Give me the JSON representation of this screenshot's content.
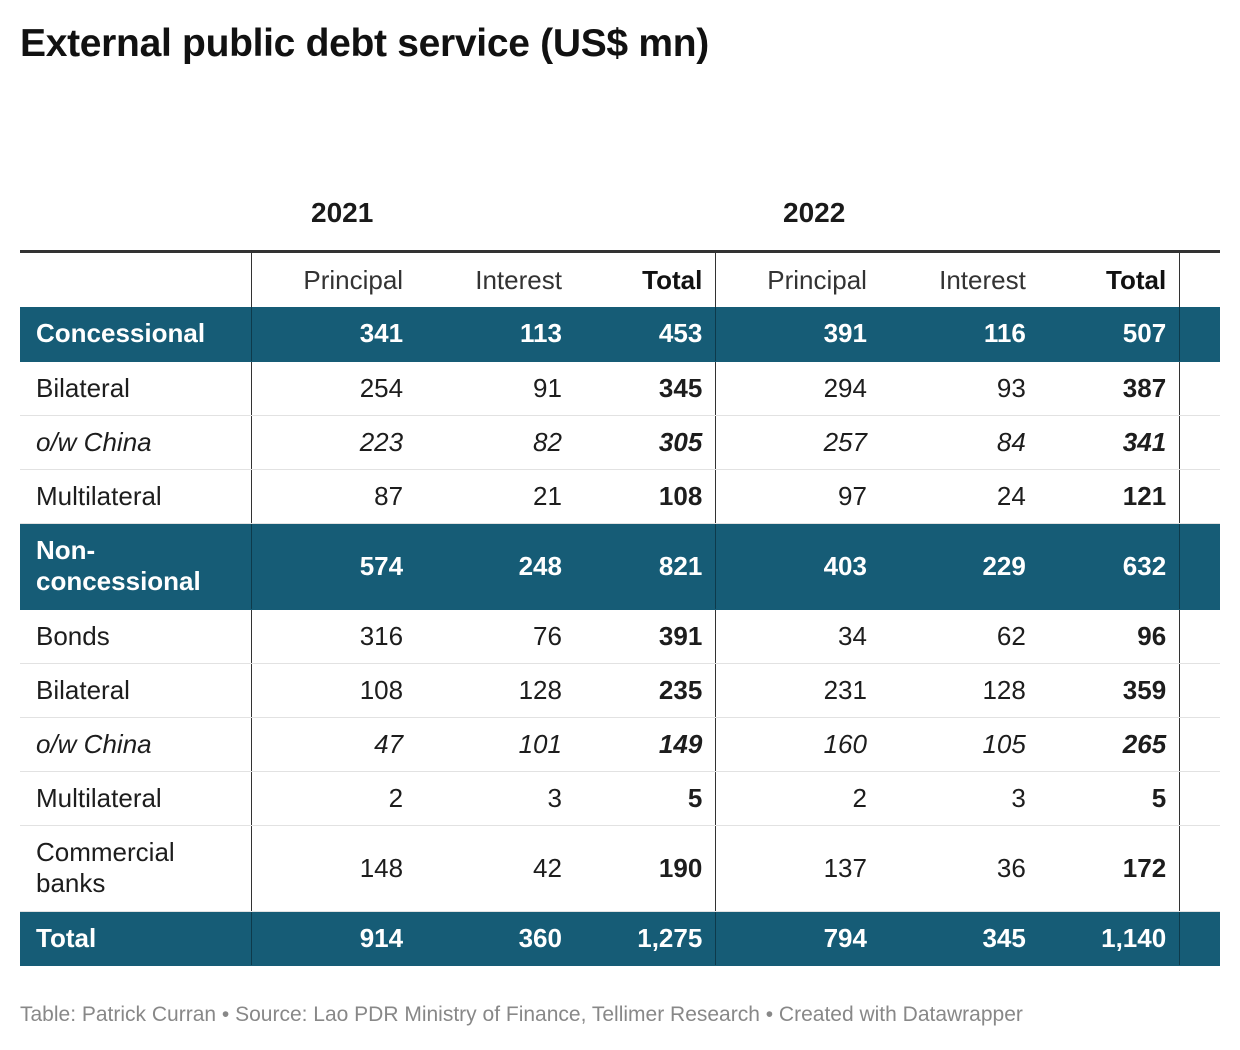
{
  "chart_data": {
    "type": "table",
    "title": "External public debt service (US$ mn)",
    "years": [
      "2021",
      "2022"
    ],
    "columns": [
      "Principal",
      "Interest",
      "Total",
      "Principal",
      "Interest",
      "Total"
    ],
    "rows": [
      {
        "label": "Concessional",
        "style": "highlight",
        "values": [
          "341",
          "113",
          "453",
          "391",
          "116",
          "507"
        ]
      },
      {
        "label": "Bilateral",
        "style": "normal",
        "values": [
          "254",
          "91",
          "345",
          "294",
          "93",
          "387"
        ]
      },
      {
        "label": "o/w China",
        "style": "italic",
        "values": [
          "223",
          "82",
          "305",
          "257",
          "84",
          "341"
        ]
      },
      {
        "label": "Multilateral",
        "style": "normal",
        "values": [
          "87",
          "21",
          "108",
          "97",
          "24",
          "121"
        ]
      },
      {
        "label": "Non-concessional",
        "style": "highlight",
        "values": [
          "574",
          "248",
          "821",
          "403",
          "229",
          "632"
        ]
      },
      {
        "label": "Bonds",
        "style": "normal",
        "values": [
          "316",
          "76",
          "391",
          "34",
          "62",
          "96"
        ]
      },
      {
        "label": "Bilateral",
        "style": "normal",
        "values": [
          "108",
          "128",
          "235",
          "231",
          "128",
          "359"
        ]
      },
      {
        "label": "o/w China",
        "style": "italic",
        "values": [
          "47",
          "101",
          "149",
          "160",
          "105",
          "265"
        ]
      },
      {
        "label": "Multilateral",
        "style": "normal",
        "values": [
          "2",
          "3",
          "5",
          "2",
          "3",
          "5"
        ]
      },
      {
        "label": "Commercial banks",
        "style": "normal",
        "values": [
          "148",
          "42",
          "190",
          "137",
          "36",
          "172"
        ]
      },
      {
        "label": "Total",
        "style": "highlight",
        "values": [
          "914",
          "360",
          "1,275",
          "794",
          "345",
          "1,140"
        ]
      }
    ],
    "colors": {
      "highlight_row": "#165c76",
      "highlight_text": "#ffffff"
    }
  },
  "footer": "Table: Patrick Curran • Source: Lao PDR Ministry of Finance, Tellimer Research • Created with Datawrapper"
}
